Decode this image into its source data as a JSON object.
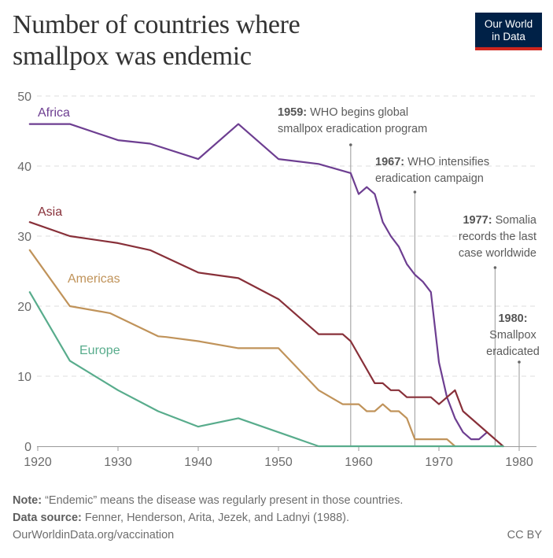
{
  "header": {
    "title_line1": "Number of countries where",
    "title_line2": "smallpox was endemic",
    "logo_line1": "Our World",
    "logo_line2": "in Data"
  },
  "footer": {
    "note_label": "Note:",
    "note_text": " “Endemic” means the disease was regularly present in those countries.",
    "source_label": "Data source:",
    "source_text": " Fenner, Henderson, Arita, Jezek, and Ladnyi (1988).",
    "url": "OurWorldinData.org/vaccination",
    "license": "CC BY"
  },
  "colors": {
    "Africa": "#6d3e91",
    "Asia": "#883039",
    "Americas": "#c0935a",
    "Europe": "#58ac8c",
    "logo_bg": "#002147",
    "logo_accent": "#ce261e"
  },
  "chart_data": {
    "type": "line",
    "title": "Number of countries where smallpox was endemic",
    "xlabel": "",
    "ylabel": "",
    "xlim": [
      1919,
      1982
    ],
    "ylim": [
      0,
      50
    ],
    "grid": true,
    "legend": "inline-labels",
    "x_ticks": [
      1920,
      1930,
      1940,
      1950,
      1960,
      1970,
      1980
    ],
    "y_ticks": [
      0,
      10,
      20,
      30,
      40,
      50
    ],
    "series": [
      {
        "name": "Africa",
        "x": [
          1919,
          1924,
          1930,
          1934,
          1940,
          1945,
          1950,
          1955,
          1959,
          1960,
          1961,
          1962,
          1963,
          1964,
          1965,
          1966,
          1967,
          1968,
          1969,
          1970,
          1971,
          1972,
          1973,
          1974,
          1975,
          1976
        ],
        "values": [
          46,
          46,
          43.7,
          43.2,
          41,
          46,
          41,
          40.3,
          39,
          36,
          37,
          36,
          32,
          30,
          28.5,
          26,
          24.5,
          23.5,
          22,
          12,
          7,
          4,
          2,
          1,
          1,
          2
        ]
      },
      {
        "name": "Asia",
        "x": [
          1919,
          1924,
          1930,
          1934,
          1940,
          1945,
          1950,
          1955,
          1958,
          1959,
          1962,
          1963,
          1964,
          1965,
          1966,
          1969,
          1970,
          1972,
          1973,
          1978
        ],
        "values": [
          32,
          30,
          29,
          28,
          24.8,
          24,
          21,
          16,
          16,
          15,
          9,
          9,
          8,
          8,
          7,
          7,
          6,
          8,
          5,
          0
        ]
      },
      {
        "name": "Americas",
        "x": [
          1919,
          1924,
          1929,
          1935,
          1936,
          1940,
          1945,
          1950,
          1955,
          1958,
          1960,
          1961,
          1962,
          1963,
          1964,
          1965,
          1966,
          1967,
          1971,
          1972
        ],
        "values": [
          28,
          20,
          19,
          15.7,
          15.6,
          15,
          14,
          14,
          8,
          6,
          6,
          5,
          5,
          6,
          5,
          5,
          4,
          1,
          1,
          0
        ]
      },
      {
        "name": "Europe",
        "x": [
          1919,
          1924,
          1930,
          1935,
          1940,
          1945,
          1950,
          1955,
          1978
        ],
        "values": [
          22,
          12.2,
          8,
          5,
          2.8,
          4,
          2,
          0,
          0
        ]
      }
    ],
    "annotations": [
      {
        "year": 1959,
        "bold": "1959:",
        "lines": [
          "WHO begins global",
          "smallpox eradication program"
        ]
      },
      {
        "year": 1967,
        "bold": "1967:",
        "lines": [
          "WHO intensifies",
          "eradication campaign"
        ]
      },
      {
        "year": 1977,
        "bold": "1977:",
        "lines": [
          "Somalia",
          "records the last",
          "case worldwide"
        ]
      },
      {
        "year": 1980,
        "bold": "1980:",
        "lines": [
          "Smallpox",
          "eradicated"
        ]
      }
    ]
  }
}
